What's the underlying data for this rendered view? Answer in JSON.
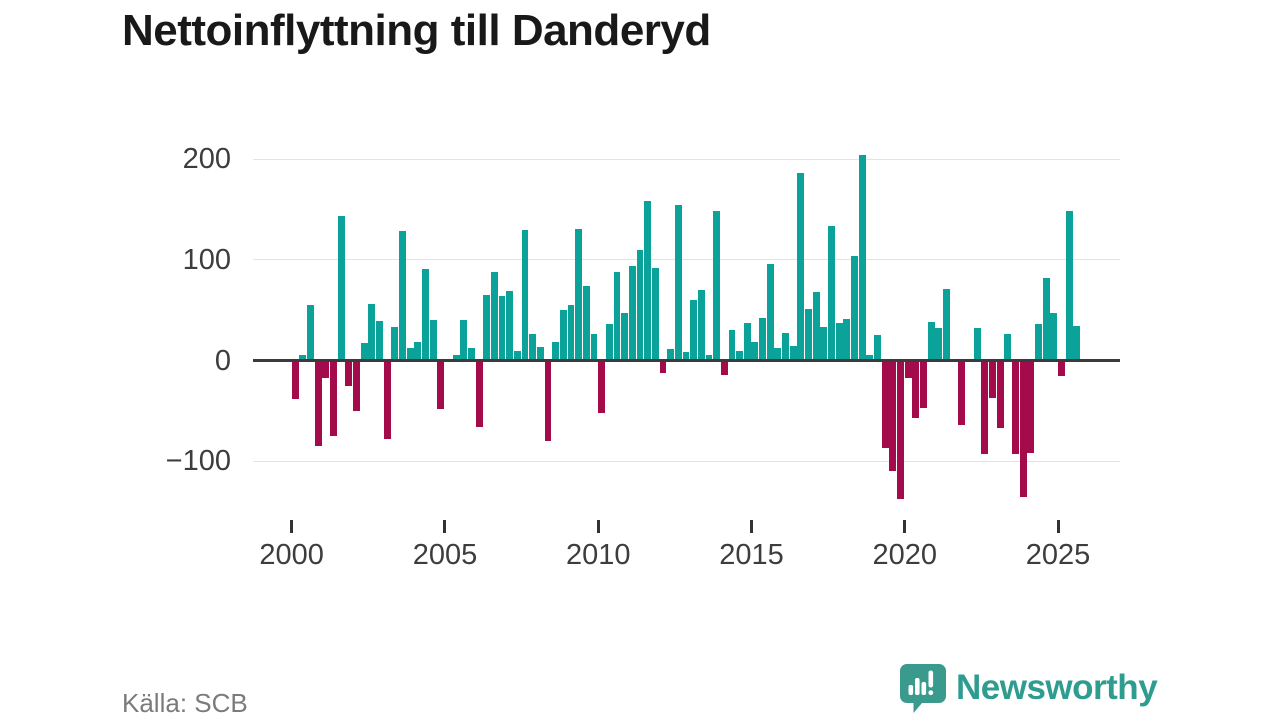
{
  "title": "Nettoinflyttning till Danderyd",
  "source": {
    "label": "Källa: SCB"
  },
  "branding": {
    "name": "Newsworthy",
    "logo_icon": "speech-bubble-bar-chart-icon"
  },
  "colors": {
    "positive_bar": "#0ba29a",
    "negative_bar": "#a30b4b",
    "zero_line": "#3b3b3b",
    "gridline": "#e3e3e3",
    "axis_text": "#3d3d3d",
    "title_text": "#191919",
    "source_text": "#7b7b7b",
    "brand_teal": "#2f9c90",
    "logo_bubble": "#3b9a8e"
  },
  "chart_data": {
    "type": "bar",
    "title": "Nettoinflyttning till Danderyd",
    "xlabel": "",
    "ylabel": "",
    "frequency": "quarterly",
    "first_period": "2000Q1",
    "last_period": "2025Q3",
    "ylim": [
      -150,
      220
    ],
    "grid": true,
    "legend": "none",
    "yticks": [
      200,
      100,
      0,
      -100
    ],
    "yticklabels": [
      "200",
      "100",
      "0",
      "−100"
    ],
    "xticks": [
      2000,
      2005,
      2010,
      2015,
      2020,
      2025
    ],
    "values_by_year": {
      "2000": [
        -38,
        5,
        55,
        -85
      ],
      "2001": [
        -17,
        -75,
        143,
        -25
      ],
      "2002": [
        -50,
        17,
        56,
        39
      ],
      "2003": [
        -78,
        33,
        129,
        12
      ],
      "2004": [
        18,
        91,
        40,
        -48
      ],
      "2005": [
        0,
        5,
        40,
        12
      ],
      "2006": [
        -66,
        65,
        88,
        64
      ],
      "2007": [
        69,
        9,
        130,
        26
      ],
      "2008": [
        13,
        -80,
        18,
        50
      ],
      "2009": [
        55,
        131,
        74,
        26
      ],
      "2010": [
        -52,
        36,
        88,
        47
      ],
      "2011": [
        94,
        110,
        158,
        92
      ],
      "2012": [
        -12,
        11,
        154,
        8
      ],
      "2013": [
        60,
        70,
        5,
        148
      ],
      "2014": [
        -14,
        30,
        9,
        37
      ],
      "2015": [
        18,
        42,
        96,
        12
      ],
      "2016": [
        27,
        14,
        186,
        51
      ],
      "2017": [
        68,
        33,
        134,
        37
      ],
      "2018": [
        41,
        104,
        204,
        5
      ],
      "2019": [
        25,
        -87,
        -110,
        -138
      ],
      "2020": [
        -17,
        -57,
        -47,
        38
      ],
      "2021": [
        32,
        71,
        0,
        -64
      ],
      "2022": [
        0,
        32,
        -93,
        -37
      ],
      "2023": [
        -67,
        26,
        -93,
        -136
      ],
      "2024": [
        -92,
        36,
        82,
        47
      ],
      "2025": [
        -15,
        148,
        34
      ]
    }
  }
}
